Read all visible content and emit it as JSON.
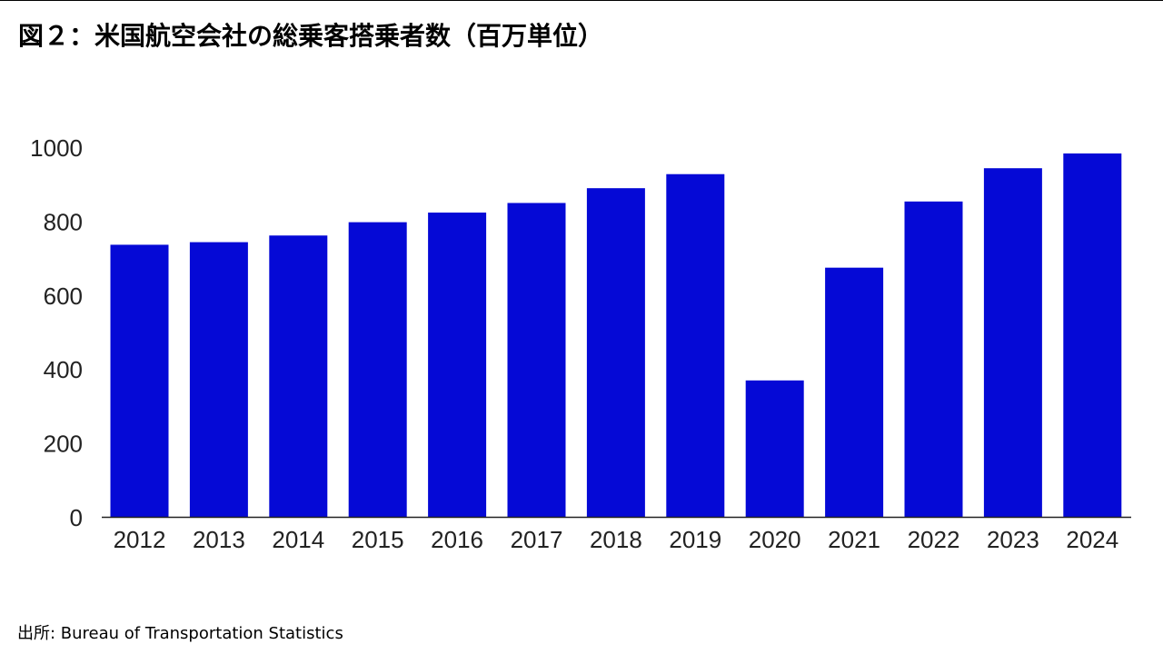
{
  "chart_data": {
    "type": "bar",
    "title": "図２：米国航空会社の総乗客搭乗者数（百万単位）",
    "xlabel": "",
    "ylabel": "",
    "categories": [
      "2012",
      "2013",
      "2014",
      "2015",
      "2016",
      "2017",
      "2018",
      "2019",
      "2020",
      "2021",
      "2022",
      "2023",
      "2024"
    ],
    "values": [
      736,
      743,
      761,
      797,
      823,
      849,
      889,
      927,
      369,
      674,
      853,
      943,
      983
    ],
    "ylim": [
      0,
      1000
    ],
    "yticks": [
      "0",
      "200",
      "400",
      "600",
      "800",
      "1000"
    ],
    "bar_color": "#0509d6",
    "grid": false,
    "legend": "none"
  },
  "source": "出所: Bureau of Transportation Statistics"
}
